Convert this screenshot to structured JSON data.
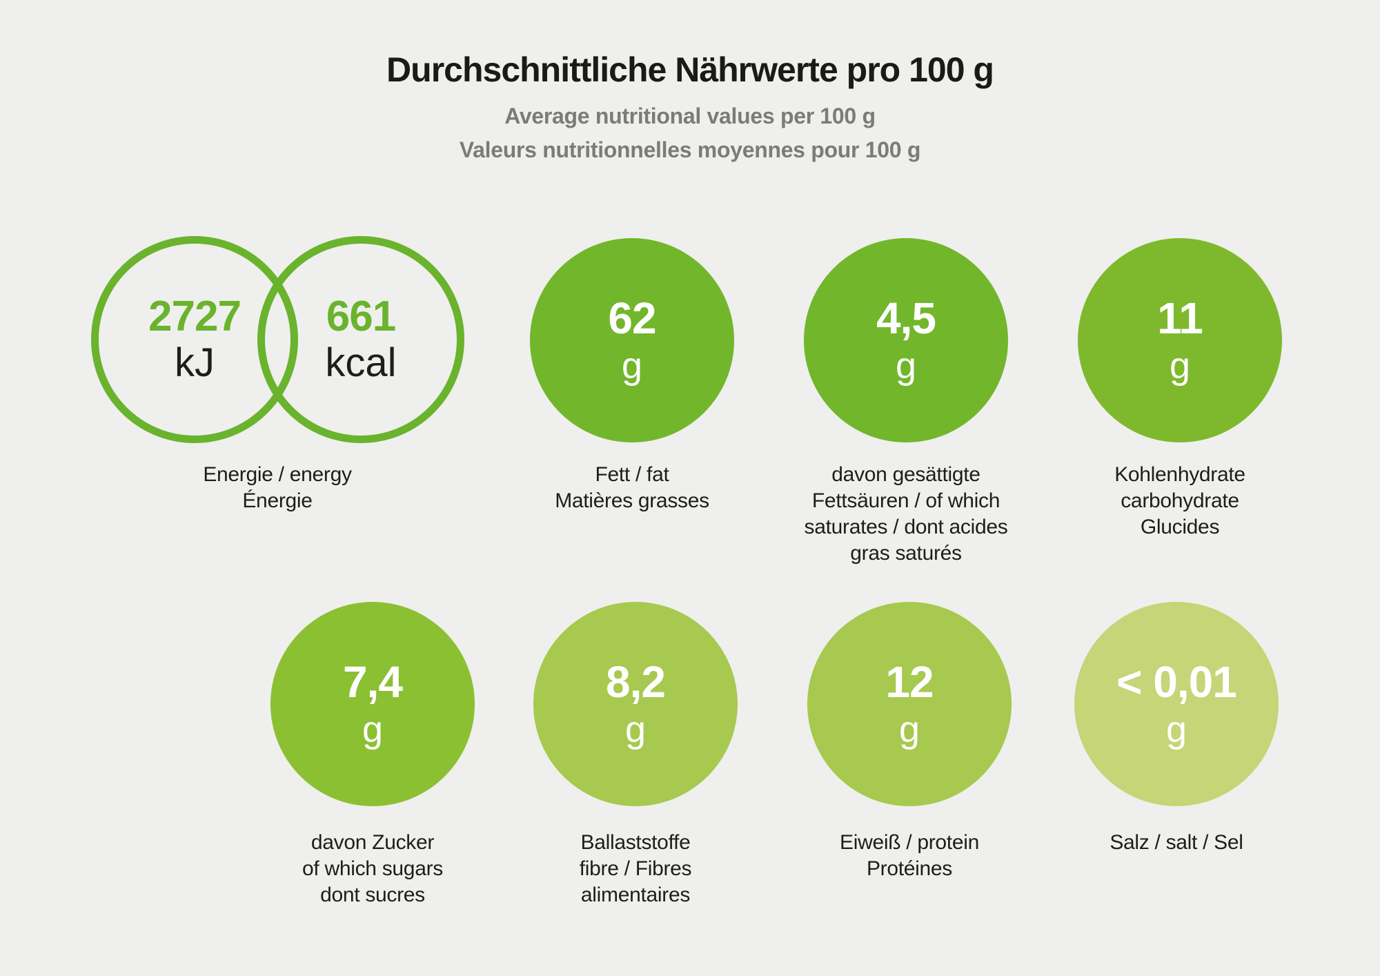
{
  "colors": {
    "background": "#efefed",
    "ring_green": "#6ab32d",
    "text_dark": "#1d1d1b",
    "subtitle_gray": "#7b7b79",
    "white": "#ffffff"
  },
  "header": {
    "title": "Durchschnittliche Nährwerte pro 100 g",
    "subtitle_en": "Average nutritional values per 100 g",
    "subtitle_fr": "Valeurs nutritionnelles moyennes pour 100 g"
  },
  "energy": {
    "kj_value": "2727",
    "kj_unit": "kJ",
    "kcal_value": "661",
    "kcal_unit": "kcal",
    "label": "Energie / energy\nÉnergie",
    "ring_color": "#6ab32d",
    "value_color": "#6ab32d"
  },
  "nutrients": [
    {
      "value": "62",
      "unit": "g",
      "label": "Fett / fat\nMatières grasses",
      "color": "#72b62c"
    },
    {
      "value": "4,5",
      "unit": "g",
      "label": "davon gesättigte\nFettsäuren / of which\nsaturates / dont acides\ngras saturés",
      "color": "#72b62c"
    },
    {
      "value": "11",
      "unit": "g",
      "label": "Kohlenhydrate\ncarbohydrate\nGlucides",
      "color": "#7eb92d"
    },
    {
      "value": "7,4",
      "unit": "g",
      "label": "davon Zucker\nof which sugars\ndont sucres",
      "color": "#8bc032"
    },
    {
      "value": "8,2",
      "unit": "g",
      "label": "Ballaststoffe\nfibre / Fibres\nalimentaires",
      "color": "#a7c94f"
    },
    {
      "value": "12",
      "unit": "g",
      "label": "Eiweiß / protein\nProtéines",
      "color": "#a7c94f"
    },
    {
      "value": "< 0,01",
      "unit": "g",
      "label": "Salz / salt / Sel",
      "color": "#c5d577"
    }
  ],
  "chart_data": {
    "type": "table",
    "title": "Durchschnittliche Nährwerte pro 100 g",
    "subtitles": [
      "Average nutritional values per 100 g",
      "Valeurs nutritionnelles moyennes pour 100 g"
    ],
    "columns": [
      "nutrient",
      "value_per_100g"
    ],
    "rows": [
      {
        "nutrient": "Energie / energy / Énergie",
        "value_per_100g": "2727 kJ / 661 kcal"
      },
      {
        "nutrient": "Fett / fat / Matières grasses",
        "value_per_100g": "62 g"
      },
      {
        "nutrient": "davon gesättigte Fettsäuren / of which saturates / dont acides gras saturés",
        "value_per_100g": "4,5 g"
      },
      {
        "nutrient": "Kohlenhydrate / carbohydrate / Glucides",
        "value_per_100g": "11 g"
      },
      {
        "nutrient": "davon Zucker / of which sugars / dont sucres",
        "value_per_100g": "7,4 g"
      },
      {
        "nutrient": "Ballaststoffe / fibre / Fibres alimentaires",
        "value_per_100g": "8,2 g"
      },
      {
        "nutrient": "Eiweiß / protein / Protéines",
        "value_per_100g": "12 g"
      },
      {
        "nutrient": "Salz / salt / Sel",
        "value_per_100g": "< 0,01 g"
      }
    ]
  }
}
